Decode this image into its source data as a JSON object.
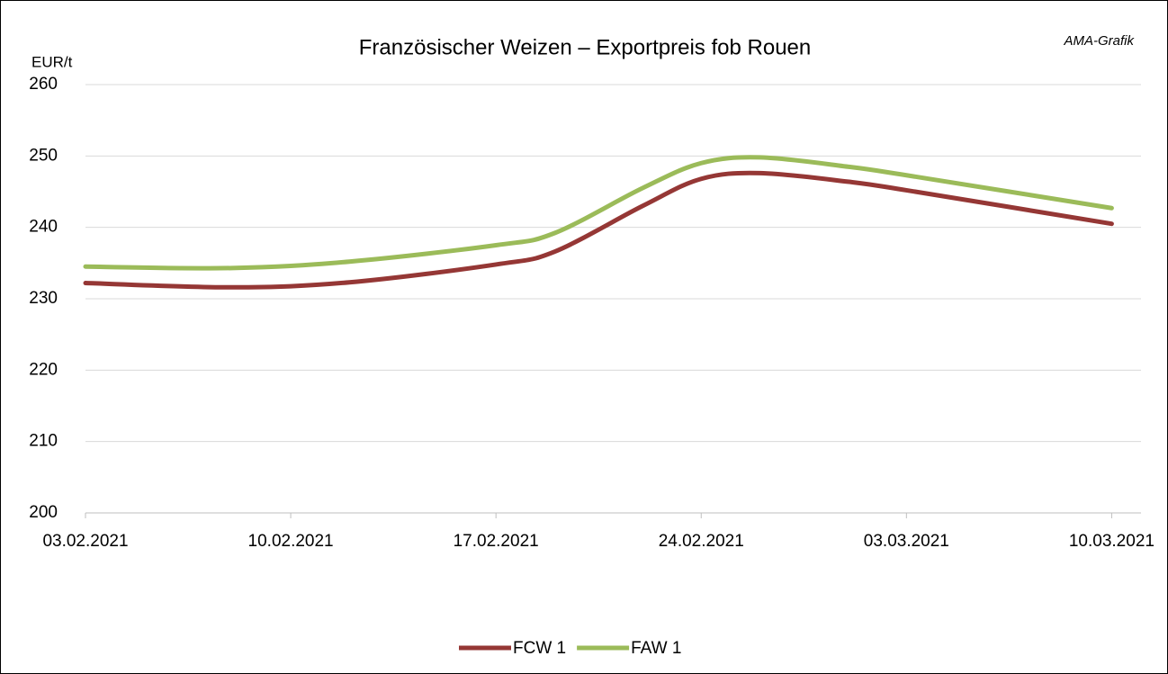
{
  "chart_data": {
    "type": "line",
    "title": "Französischer Weizen – Exportpreis fob Rouen",
    "source": "AMA-Grafik",
    "y_label": "EUR/t",
    "x": [
      "03.02.2021",
      "08.02.2021",
      "12.02.2021",
      "17.02.2021",
      "19.02.2021",
      "22.02.2021",
      "24.02.2021",
      "26.02.2021",
      "01.03.2021",
      "03.03.2021",
      "10.03.2021"
    ],
    "series": [
      {
        "name": "FCW 1",
        "color": "#953735",
        "values": [
          232.2,
          231.6,
          232.3,
          234.8,
          236.6,
          243.0,
          246.8,
          247.6,
          246.4,
          245.2,
          240.5
        ]
      },
      {
        "name": "FAW 1",
        "color": "#9bbb59",
        "values": [
          234.5,
          234.3,
          235.2,
          237.5,
          239.2,
          245.5,
          249.0,
          249.8,
          248.5,
          247.3,
          242.7
        ]
      }
    ],
    "xlim": [
      "03.02.2021",
      "11.03.2021"
    ],
    "xticks": [
      "03.02.2021",
      "10.02.2021",
      "17.02.2021",
      "24.02.2021",
      "03.03.2021",
      "10.03.2021"
    ],
    "ylim": [
      200,
      260
    ],
    "yticks": [
      200,
      210,
      220,
      230,
      240,
      250,
      260
    ],
    "grid": true,
    "legend": "bottom"
  }
}
